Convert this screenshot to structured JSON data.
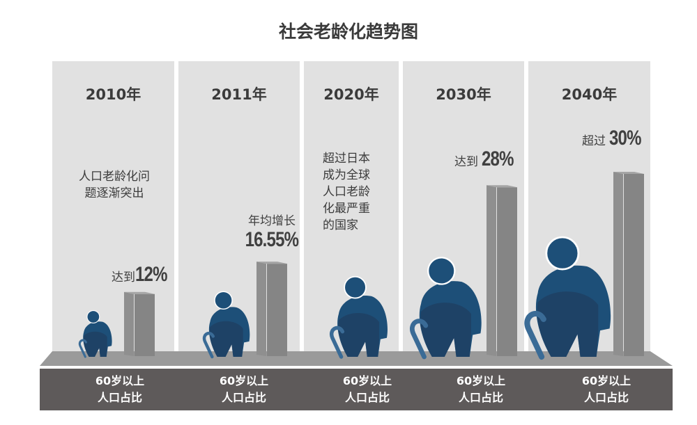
{
  "title": "社会老龄化趋势图",
  "colors": {
    "panel": "#e1e1e1",
    "floor": "#9a9a9a",
    "band": "#5e5a5a",
    "bar": "#858585",
    "figure": "#1d4f78",
    "figure_shadow": "#1f3e62"
  },
  "icons": [
    "elderly-person-with-cane-icon"
  ],
  "chart_data": {
    "type": "bar",
    "title": "社会老龄化趋势图",
    "categories": [
      "2010年",
      "2011年",
      "2020年",
      "2030年",
      "2040年"
    ],
    "series": [
      {
        "values": [
          12,
          16.55,
          null,
          28,
          30
        ]
      }
    ],
    "unit": "%",
    "category_caption": "60岁以上人口占比"
  },
  "panels": [
    {
      "year": "2010年",
      "note": [
        "人口老龄化问",
        "题逐渐突出"
      ],
      "value_prefix": "达到",
      "value_text": "12%",
      "bottom": [
        "60岁以上",
        "人口占比"
      ]
    },
    {
      "year": "2011年",
      "note": [],
      "value_prefix": "年均增长",
      "value_text": "16.55%",
      "bottom": [
        "60岁以上",
        "人口占比"
      ]
    },
    {
      "year": "2020年",
      "note": [
        "超过日本",
        "成为全球",
        "人口老龄",
        "化最严重",
        "的国家"
      ],
      "value_prefix": "",
      "value_text": "",
      "bottom": [
        "60岁以上",
        "人口占比"
      ]
    },
    {
      "year": "2030年",
      "note": [],
      "value_prefix": "达到",
      "value_text": "28%",
      "bottom": [
        "60岁以上",
        "人口占比"
      ]
    },
    {
      "year": "2040年",
      "note": [],
      "value_prefix": "超过",
      "value_text": "30%",
      "bottom": [
        "60岁以上",
        "人口占比"
      ]
    }
  ]
}
